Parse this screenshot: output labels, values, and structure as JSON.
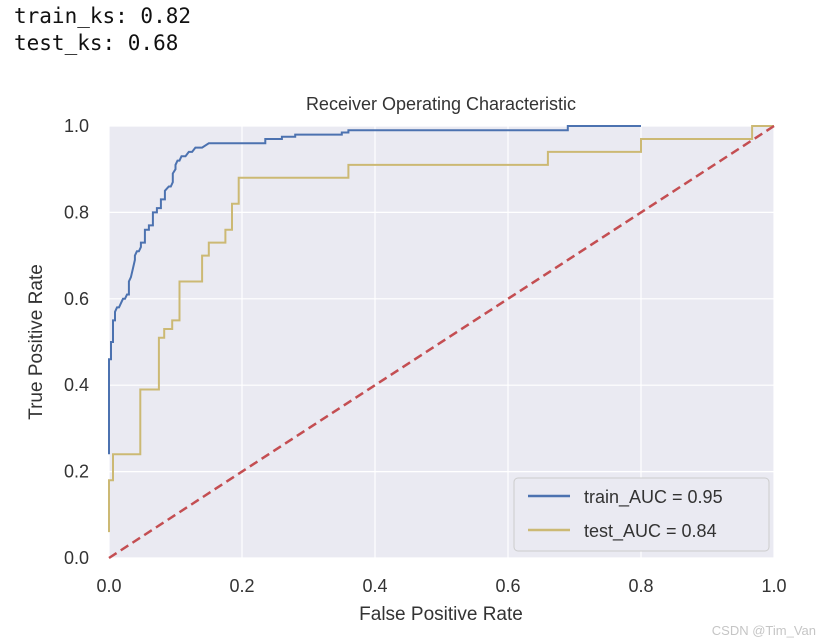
{
  "console": {
    "lines": [
      "train_ks: 0.82",
      "test_ks: 0.68"
    ]
  },
  "chart_data": {
    "type": "line",
    "title": "Receiver Operating Characteristic",
    "xlabel": "False Positive Rate",
    "ylabel": "True Positive Rate",
    "xlim": [
      0.0,
      1.0
    ],
    "ylim": [
      0.0,
      1.0
    ],
    "xticks": [
      "0.0",
      "0.2",
      "0.4",
      "0.6",
      "0.8",
      "1.0"
    ],
    "yticks": [
      "0.0",
      "0.2",
      "0.4",
      "0.6",
      "0.8",
      "1.0"
    ],
    "grid": true,
    "legend_position": "lower-right",
    "series": [
      {
        "name": "train_AUC = 0.95",
        "color": "#4c72b0",
        "x": [
          0,
          0,
          0.003,
          0.003,
          0.006,
          0.006,
          0.009,
          0.009,
          0.012,
          0.015,
          0.018,
          0.021,
          0.024,
          0.027,
          0.03,
          0.03,
          0.033,
          0.036,
          0.039,
          0.039,
          0.042,
          0.045,
          0.048,
          0.048,
          0.054,
          0.054,
          0.06,
          0.06,
          0.066,
          0.066,
          0.072,
          0.072,
          0.078,
          0.078,
          0.084,
          0.084,
          0.09,
          0.093,
          0.096,
          0.096,
          0.1,
          0.1,
          0.103,
          0.106,
          0.109,
          0.112,
          0.115,
          0.12,
          0.125,
          0.13,
          0.14,
          0.15,
          0.16,
          0.2,
          0.235,
          0.235,
          0.26,
          0.26,
          0.28,
          0.28,
          0.35,
          0.35,
          0.36,
          0.36,
          0.48,
          0.69,
          0.69,
          0.8,
          0.8
        ],
        "y": [
          0.24,
          0.46,
          0.46,
          0.5,
          0.5,
          0.55,
          0.55,
          0.57,
          0.58,
          0.58,
          0.59,
          0.6,
          0.6,
          0.61,
          0.61,
          0.64,
          0.65,
          0.67,
          0.69,
          0.7,
          0.71,
          0.71,
          0.72,
          0.73,
          0.73,
          0.76,
          0.76,
          0.77,
          0.77,
          0.8,
          0.8,
          0.81,
          0.81,
          0.83,
          0.83,
          0.85,
          0.86,
          0.86,
          0.87,
          0.89,
          0.9,
          0.91,
          0.92,
          0.92,
          0.93,
          0.93,
          0.93,
          0.94,
          0.94,
          0.95,
          0.95,
          0.96,
          0.96,
          0.96,
          0.96,
          0.97,
          0.97,
          0.975,
          0.975,
          0.98,
          0.98,
          0.985,
          0.985,
          0.99,
          0.99,
          0.99,
          1.0,
          1.0,
          1.0
        ]
      },
      {
        "name": "test_AUC = 0.84",
        "color": "#ccb974",
        "x": [
          0,
          0,
          0.006,
          0.006,
          0.017,
          0.017,
          0.047,
          0.047,
          0.075,
          0.075,
          0.083,
          0.083,
          0.095,
          0.095,
          0.106,
          0.106,
          0.14,
          0.14,
          0.15,
          0.15,
          0.175,
          0.175,
          0.185,
          0.185,
          0.195,
          0.195,
          0.36,
          0.36,
          0.66,
          0.66,
          0.8,
          0.8,
          0.967,
          0.967,
          1.0
        ],
        "y": [
          0.06,
          0.18,
          0.18,
          0.24,
          0.24,
          0.24,
          0.24,
          0.39,
          0.39,
          0.51,
          0.51,
          0.53,
          0.53,
          0.55,
          0.55,
          0.64,
          0.64,
          0.7,
          0.7,
          0.73,
          0.73,
          0.76,
          0.76,
          0.82,
          0.82,
          0.88,
          0.88,
          0.91,
          0.91,
          0.94,
          0.94,
          0.97,
          0.97,
          1.0,
          1.0
        ]
      },
      {
        "name": "baseline",
        "color": "#c44e52",
        "dashed": true,
        "x": [
          0,
          1
        ],
        "y": [
          0,
          1
        ]
      }
    ]
  },
  "watermark": "CSDN @Tim_Van"
}
